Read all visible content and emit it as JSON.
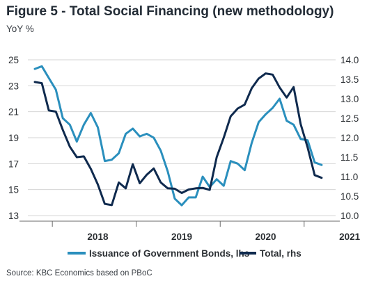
{
  "header": {
    "title": "Figure 5 - Total Social Financing (new methodology)",
    "subtitle": "YoY %"
  },
  "footer": {
    "source": "Source: KBC Economics based on PBoC"
  },
  "colors": {
    "gov_bonds": "#2a8fbd",
    "total": "#0f2a4e",
    "grid": "#d4d4d4",
    "axis": "#6a6a6a"
  },
  "chart_data": {
    "type": "line",
    "title": "Figure 5 - Total Social Financing (new methodology)",
    "subtitle": "YoY %",
    "x_ticks": [
      "2018",
      "2019",
      "2020",
      "2021"
    ],
    "x_range": [
      "2017-10",
      "2021-05"
    ],
    "y_left": {
      "ticks": [
        "25",
        "23",
        "21",
        "19",
        "17",
        "15",
        "13"
      ],
      "range": [
        13,
        25
      ]
    },
    "y_right": {
      "ticks": [
        "14.0",
        "13.5",
        "13.0",
        "12.5",
        "12.0",
        "11.5",
        "11.0",
        "10.5",
        "10.0"
      ],
      "range": [
        10.0,
        14.0
      ]
    },
    "grid": true,
    "legend_position": "bottom",
    "series": [
      {
        "name": "Issuance of Government Bonds, lhs",
        "axis": "left",
        "points": [
          [
            "2017-10",
            24.3
          ],
          [
            "2017-11",
            24.5
          ],
          [
            "2017-12",
            23.6
          ],
          [
            "2018-01",
            22.7
          ],
          [
            "2018-02",
            20.5
          ],
          [
            "2018-03",
            20.0
          ],
          [
            "2018-04",
            18.7
          ],
          [
            "2018-05",
            20.0
          ],
          [
            "2018-06",
            20.9
          ],
          [
            "2018-07",
            19.8
          ],
          [
            "2018-08",
            17.2
          ],
          [
            "2018-09",
            17.3
          ],
          [
            "2018-10",
            17.8
          ],
          [
            "2018-11",
            19.3
          ],
          [
            "2018-12",
            19.7
          ],
          [
            "2019-01",
            19.1
          ],
          [
            "2019-02",
            19.3
          ],
          [
            "2019-03",
            19.0
          ],
          [
            "2019-04",
            18.0
          ],
          [
            "2019-05",
            16.4
          ],
          [
            "2019-06",
            14.3
          ],
          [
            "2019-07",
            13.8
          ],
          [
            "2019-08",
            14.4
          ],
          [
            "2019-09",
            14.4
          ],
          [
            "2019-10",
            16.0
          ],
          [
            "2019-11",
            15.2
          ],
          [
            "2019-12",
            15.8
          ],
          [
            "2020-01",
            15.3
          ],
          [
            "2020-02",
            17.2
          ],
          [
            "2020-03",
            17.0
          ],
          [
            "2020-04",
            16.5
          ],
          [
            "2020-05",
            18.6
          ],
          [
            "2020-06",
            20.2
          ],
          [
            "2020-07",
            20.8
          ],
          [
            "2020-08",
            21.3
          ],
          [
            "2020-09",
            22.0
          ],
          [
            "2020-10",
            20.3
          ],
          [
            "2020-11",
            20.0
          ],
          [
            "2020-12",
            18.9
          ],
          [
            "2021-01",
            18.8
          ],
          [
            "2021-02",
            17.1
          ],
          [
            "2021-03",
            16.9
          ]
        ]
      },
      {
        "name": "Total, rhs",
        "axis": "right",
        "points": [
          [
            "2017-10",
            13.43
          ],
          [
            "2017-11",
            13.4
          ],
          [
            "2017-12",
            12.7
          ],
          [
            "2018-01",
            12.67
          ],
          [
            "2018-02",
            12.2
          ],
          [
            "2018-03",
            11.77
          ],
          [
            "2018-04",
            11.5
          ],
          [
            "2018-05",
            11.52
          ],
          [
            "2018-06",
            11.2
          ],
          [
            "2018-07",
            10.8
          ],
          [
            "2018-08",
            10.3
          ],
          [
            "2018-09",
            10.27
          ],
          [
            "2018-10",
            10.85
          ],
          [
            "2018-11",
            10.7
          ],
          [
            "2018-12",
            11.32
          ],
          [
            "2019-01",
            10.83
          ],
          [
            "2019-02",
            11.05
          ],
          [
            "2019-03",
            11.21
          ],
          [
            "2019-04",
            10.85
          ],
          [
            "2019-05",
            10.7
          ],
          [
            "2019-06",
            10.69
          ],
          [
            "2019-07",
            10.58
          ],
          [
            "2019-08",
            10.67
          ],
          [
            "2019-09",
            10.7
          ],
          [
            "2019-10",
            10.71
          ],
          [
            "2019-11",
            10.66
          ],
          [
            "2019-12",
            11.5
          ],
          [
            "2020-01",
            12.0
          ],
          [
            "2020-02",
            12.55
          ],
          [
            "2020-03",
            12.75
          ],
          [
            "2020-04",
            12.85
          ],
          [
            "2020-05",
            13.27
          ],
          [
            "2020-06",
            13.52
          ],
          [
            "2020-07",
            13.65
          ],
          [
            "2020-08",
            13.62
          ],
          [
            "2020-09",
            13.29
          ],
          [
            "2020-10",
            13.03
          ],
          [
            "2020-11",
            13.3
          ],
          [
            "2020-12",
            12.35
          ],
          [
            "2021-01",
            11.75
          ],
          [
            "2021-02",
            11.04
          ],
          [
            "2021-03",
            10.97
          ]
        ]
      }
    ]
  }
}
